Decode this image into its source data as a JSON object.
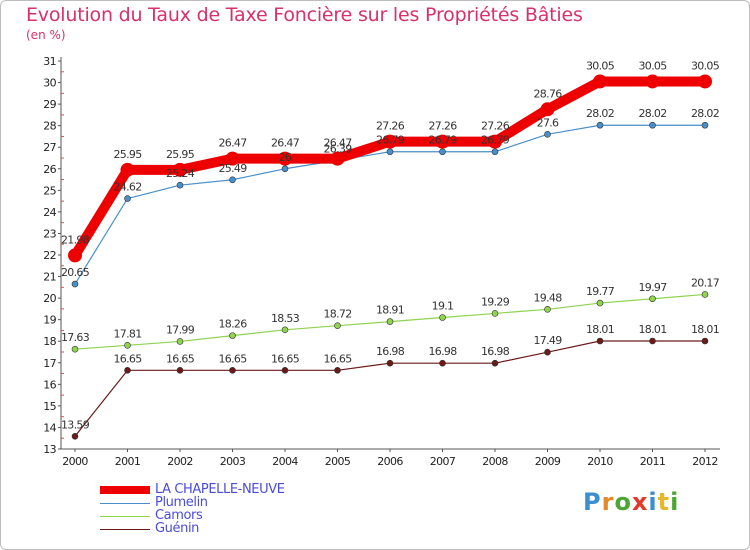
{
  "chart_data": {
    "type": "line",
    "title": "Evolution du Taux de Taxe Foncière sur les Propriétés Bâties",
    "subtitle": "(en %)",
    "x": [
      "2000",
      "2001",
      "2002",
      "2003",
      "2004",
      "2005",
      "2006",
      "2007",
      "2008",
      "2009",
      "2010",
      "2011",
      "2012"
    ],
    "ylim": [
      13,
      31
    ],
    "yticks": [
      13,
      14,
      15,
      16,
      17,
      18,
      19,
      20,
      21,
      22,
      23,
      24,
      25,
      26,
      27,
      28,
      29,
      30,
      31
    ],
    "series": [
      {
        "name": "LA CHAPELLE-NEUVE",
        "color": "#ee0000",
        "values": [
          21.98,
          25.95,
          25.95,
          26.47,
          26.47,
          26.47,
          27.26,
          27.26,
          27.26,
          28.76,
          30.05,
          30.05,
          30.05
        ],
        "labels": [
          "21.98",
          "25.95",
          "25.95",
          "26.47",
          "26.47",
          "26.47",
          "27.26",
          "27.26",
          "27.26",
          "28.76",
          "30.05",
          "30.05",
          "30.05"
        ]
      },
      {
        "name": "Plumelin",
        "color": "#4a8fc9",
        "values": [
          20.65,
          24.62,
          25.24,
          25.49,
          26.0,
          26.39,
          26.79,
          26.79,
          26.79,
          27.6,
          28.02,
          28.02,
          28.02
        ],
        "labels": [
          "20.65",
          "24.62",
          "25.24",
          "25.49",
          "26",
          "26.39",
          "26.79",
          "26.79",
          "26.79",
          "27.6",
          "28.02",
          "28.02",
          "28.02"
        ]
      },
      {
        "name": "Camors",
        "color": "#8fd34f",
        "values": [
          17.63,
          17.81,
          17.99,
          18.26,
          18.53,
          18.72,
          18.91,
          19.1,
          19.29,
          19.48,
          19.77,
          19.97,
          20.17
        ],
        "labels": [
          "17.63",
          "17.81",
          "17.99",
          "18.26",
          "18.53",
          "18.72",
          "18.91",
          "19.1",
          "19.29",
          "19.48",
          "19.77",
          "19.97",
          "20.17"
        ]
      },
      {
        "name": "Guénin",
        "color": "#6b1a1a",
        "values": [
          13.59,
          16.65,
          16.65,
          16.65,
          16.65,
          16.65,
          16.98,
          16.98,
          16.98,
          17.49,
          18.01,
          18.01,
          18.01
        ],
        "labels": [
          "13.59",
          "16.65",
          "16.65",
          "16.65",
          "16.65",
          "16.65",
          "16.98",
          "16.98",
          "16.98",
          "17.49",
          "18.01",
          "18.01",
          "18.01"
        ]
      }
    ],
    "legend": [
      "LA CHAPELLE-NEUVE",
      "Plumelin",
      "Camors",
      "Guénin"
    ],
    "legend_position": "bottom-left",
    "grid": false
  },
  "brand": {
    "logo_text": "Proxiti"
  }
}
